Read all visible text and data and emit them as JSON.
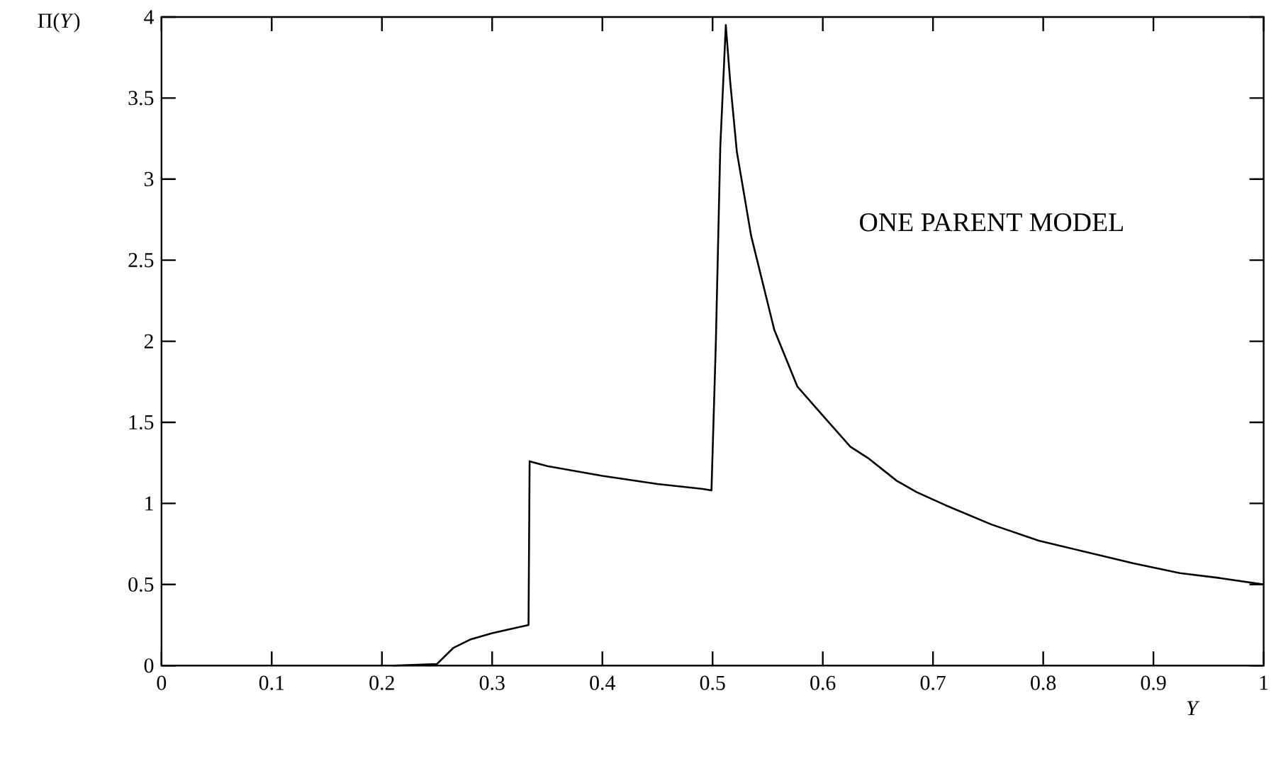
{
  "chart_data": {
    "type": "line",
    "xlabel": "*Y*",
    "ylabel": "Π(*Y*)",
    "annotations": [
      "ONE PARENT MODEL"
    ],
    "x": [
      0.21,
      0.25,
      0.265,
      0.28,
      0.3,
      0.32,
      0.333,
      0.334,
      0.35,
      0.4,
      0.45,
      0.49,
      0.499,
      0.503,
      0.507,
      0.512,
      0.516,
      0.522,
      0.535,
      0.556,
      0.577,
      0.599,
      0.625,
      0.641,
      0.667,
      0.685,
      0.711,
      0.753,
      0.796,
      0.839,
      0.882,
      0.924,
      0.96,
      1.0
    ],
    "series": [
      {
        "color": "#000000",
        "values": [
          0,
          0.01,
          0.11,
          0.16,
          0.2,
          0.23,
          0.25,
          1.26,
          1.23,
          1.17,
          1.12,
          1.09,
          1.08,
          2.0,
          3.2,
          3.95,
          3.6,
          3.17,
          2.65,
          2.07,
          1.72,
          1.55,
          1.35,
          1.28,
          1.14,
          1.07,
          0.99,
          0.87,
          0.77,
          0.7,
          0.63,
          0.57,
          0.54,
          0.5
        ]
      }
    ],
    "xlim": [
      0,
      1
    ],
    "ylim": [
      0,
      4
    ],
    "xticks": [
      0,
      0.1,
      0.2,
      0.3,
      0.4,
      0.5,
      0.6,
      0.7,
      0.8,
      0.9,
      1
    ],
    "yticks": [
      0,
      0.5,
      1,
      1.5,
      2,
      2.5,
      3,
      3.5,
      4
    ],
    "grid": false,
    "marker": "none",
    "line_style": "solid"
  }
}
